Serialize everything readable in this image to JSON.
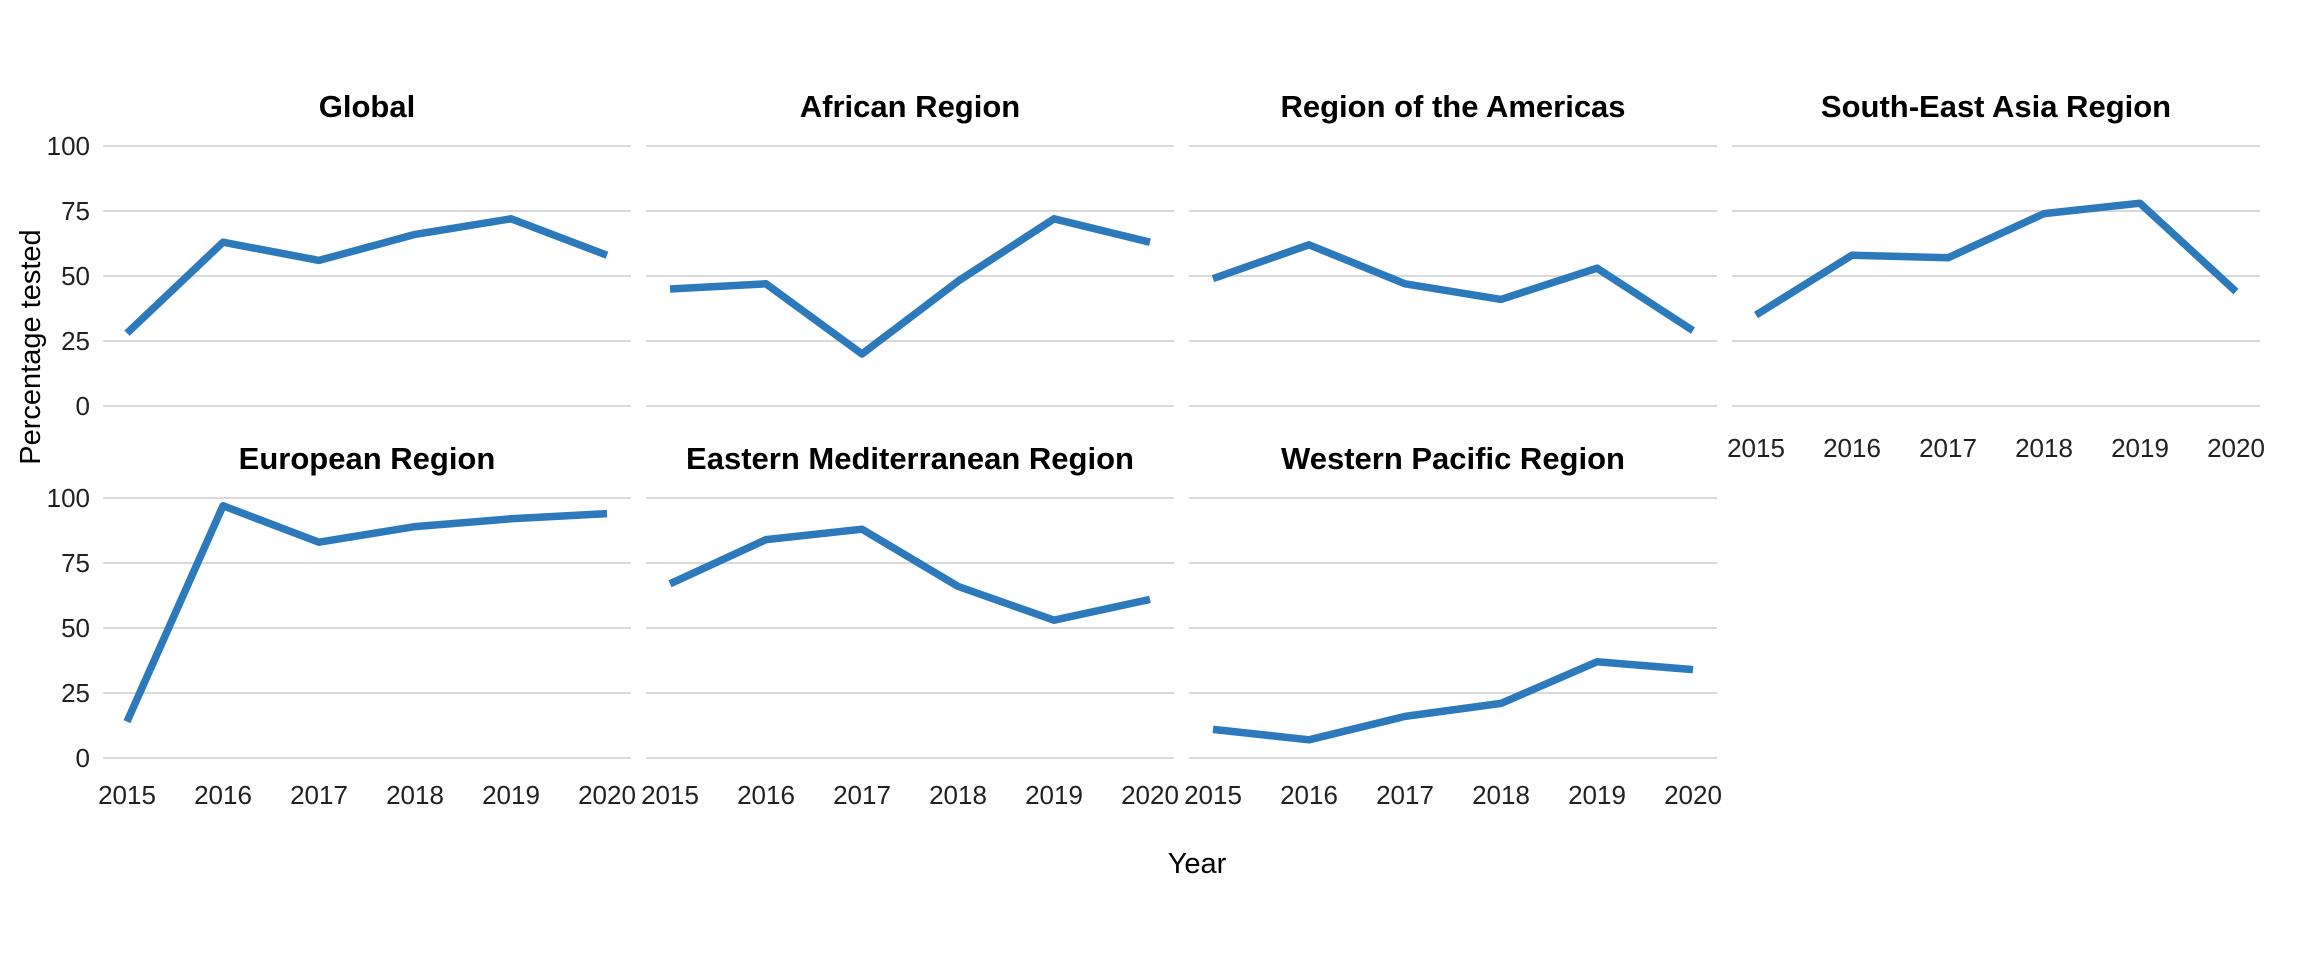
{
  "figure": {
    "kind": "faceted line chart (small multiples)",
    "background_color": "#ffffff",
    "line_color": "#2c79bb",
    "grid_color": "#d9d9d9",
    "title_color": "#000000",
    "tick_color": "#212121"
  },
  "chart_data": {
    "type": "line",
    "title": "",
    "xlabel": "Year",
    "ylabel": "Percentage tested",
    "x": [
      2015,
      2016,
      2017,
      2018,
      2019,
      2020
    ],
    "x_tick_labels": [
      "2015",
      "2016",
      "2017",
      "2018",
      "2019",
      "2020"
    ],
    "ylim": [
      0,
      100
    ],
    "yticks": [
      0,
      25,
      50,
      75,
      100
    ],
    "y_tick_labels": [
      "0",
      "25",
      "50",
      "75",
      "100"
    ],
    "grid": "horizontal-only",
    "legend": "none",
    "facet_layout": {
      "rows": 2,
      "columns": 4,
      "empty_cell": "row 2, column 4"
    },
    "facets": [
      {
        "title": "Global",
        "values": [
          28,
          63,
          56,
          66,
          72,
          58
        ]
      },
      {
        "title": "African Region",
        "values": [
          45,
          47,
          20,
          48,
          72,
          63
        ]
      },
      {
        "title": "Region of the Americas",
        "values": [
          49,
          62,
          47,
          41,
          53,
          29
        ]
      },
      {
        "title": "South-East Asia Region",
        "values": [
          35,
          58,
          57,
          74,
          78,
          44
        ]
      },
      {
        "title": "European Region",
        "values": [
          14,
          97,
          83,
          89,
          92,
          94
        ]
      },
      {
        "title": "Eastern Mediterranean Region",
        "values": [
          67,
          84,
          88,
          66,
          53,
          61
        ]
      },
      {
        "title": "Western Pacific Region",
        "values": [
          11,
          7,
          16,
          21,
          37,
          34
        ]
      }
    ]
  }
}
